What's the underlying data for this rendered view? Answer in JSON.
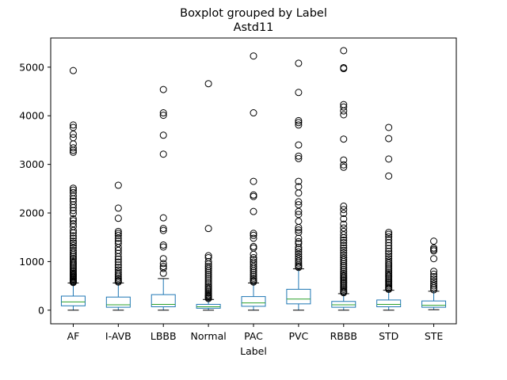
{
  "chart_data": {
    "type": "boxplot",
    "title": "Boxplot grouped by Label",
    "subtitle": "Astd11",
    "xlabel": "Label",
    "ylabel": "",
    "ylim": [
      -280,
      5600
    ],
    "yticks": [
      0,
      1000,
      2000,
      3000,
      4000,
      5000
    ],
    "grid": false,
    "colors": {
      "box": "#1f77b4",
      "median": "#2ca02c",
      "flier": "#000000",
      "axis": "#000000"
    },
    "categories": [
      "AF",
      "I-AVB",
      "LBBB",
      "Normal",
      "PAC",
      "PVC",
      "RBBB",
      "STD",
      "STE"
    ],
    "boxes": [
      {
        "label": "AF",
        "whislo": 0,
        "q1": 90,
        "med": 170,
        "q3": 290,
        "whishi": 560,
        "fliers": [
          4930,
          3810,
          3760,
          3620,
          3550,
          3420,
          3340,
          3290,
          3250,
          2510,
          2470,
          2420,
          2350,
          2290,
          2240,
          2170,
          2110,
          2050,
          1990,
          1880,
          1840,
          1780,
          1720,
          1640,
          1590,
          1530,
          1480,
          1420,
          1380,
          1330,
          1280,
          1230,
          1190,
          1150,
          1110,
          1070,
          1040,
          1000,
          970,
          940,
          910,
          880,
          850,
          820,
          790,
          760,
          740,
          720,
          700,
          680,
          660,
          640,
          620,
          600,
          585,
          570
        ]
      },
      {
        "label": "I-AVB",
        "whislo": 0,
        "q1": 60,
        "med": 110,
        "q3": 270,
        "whishi": 560,
        "fliers": [
          2570,
          2100,
          1890,
          1620,
          1580,
          1540,
          1480,
          1420,
          1370,
          1290,
          1230,
          1170,
          1100,
          1050,
          990,
          930,
          880,
          830,
          780,
          740,
          700,
          660,
          630,
          600,
          580
        ]
      },
      {
        "label": "LBBB",
        "whislo": 0,
        "q1": 70,
        "med": 120,
        "q3": 320,
        "whishi": 650,
        "fliers": [
          4540,
          4060,
          4010,
          3600,
          3210,
          1900,
          1680,
          1640,
          1340,
          1300,
          1060,
          960,
          900,
          860,
          760
        ]
      },
      {
        "label": "Normal",
        "whislo": 0,
        "q1": 40,
        "med": 70,
        "q3": 120,
        "whishi": 220,
        "fliers": [
          4660,
          1680,
          1120,
          1080,
          1000,
          950,
          900,
          860,
          820,
          780,
          740,
          700,
          660,
          620,
          580,
          540,
          500,
          470,
          440,
          410,
          380,
          350,
          320,
          300,
          280,
          260,
          240
        ]
      },
      {
        "label": "PAC",
        "whislo": 0,
        "q1": 80,
        "med": 150,
        "q3": 280,
        "whishi": 560,
        "fliers": [
          5230,
          4060,
          2650,
          2370,
          2340,
          2030,
          1580,
          1540,
          1480,
          1310,
          1280,
          1150,
          1080,
          1040,
          990,
          950,
          900,
          860,
          820,
          780,
          740,
          700,
          660,
          630,
          600,
          580
        ]
      },
      {
        "label": "PVC",
        "whislo": 0,
        "q1": 130,
        "med": 230,
        "q3": 430,
        "whishi": 850,
        "fliers": [
          5080,
          4480,
          3900,
          3860,
          3810,
          3400,
          3170,
          3120,
          2650,
          2540,
          2410,
          2230,
          2170,
          2030,
          1970,
          1830,
          1700,
          1650,
          1600,
          1480,
          1410,
          1370,
          1290,
          1250,
          1200,
          1150,
          1100,
          1060,
          1010,
          970,
          930,
          900,
          880
        ]
      },
      {
        "label": "RBBB",
        "whislo": 0,
        "q1": 60,
        "med": 110,
        "q3": 180,
        "whishi": 340,
        "fliers": [
          5340,
          4990,
          4970,
          4230,
          4180,
          4100,
          4020,
          3520,
          3090,
          2990,
          2940,
          2140,
          2070,
          1990,
          1880,
          1770,
          1690,
          1620,
          1550,
          1490,
          1440,
          1390,
          1330,
          1280,
          1230,
          1180,
          1130,
          1080,
          1040,
          1000,
          960,
          920,
          880,
          840,
          800,
          760,
          730,
          700,
          670,
          640,
          610,
          580,
          550,
          520,
          490,
          460,
          430,
          400,
          380,
          360
        ]
      },
      {
        "label": "STD",
        "whislo": 0,
        "q1": 70,
        "med": 120,
        "q3": 210,
        "whishi": 410,
        "fliers": [
          3760,
          3530,
          3110,
          2760,
          1600,
          1560,
          1510,
          1450,
          1390,
          1330,
          1270,
          1210,
          1160,
          1110,
          1060,
          1010,
          970,
          930,
          890,
          850,
          810,
          770,
          740,
          710,
          680,
          650,
          620,
          590,
          560,
          530,
          500,
          470,
          450,
          430
        ]
      },
      {
        "label": "STE",
        "whislo": 10,
        "q1": 60,
        "med": 100,
        "q3": 190,
        "whishi": 390,
        "fliers": [
          1420,
          1280,
          1250,
          1220,
          1060,
          800,
          740,
          690,
          640,
          590,
          540,
          500,
          460,
          420
        ]
      }
    ]
  }
}
